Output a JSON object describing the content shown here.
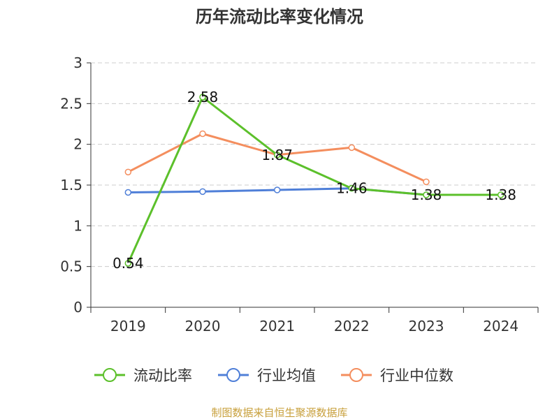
{
  "chart_data": {
    "type": "line",
    "title": "历年流动比率变化情况",
    "categories": [
      "2019",
      "2020",
      "2021",
      "2022",
      "2023",
      "2024"
    ],
    "y_ticks": [
      "0",
      "0.5",
      "1",
      "1.5",
      "2",
      "2.5",
      "3"
    ],
    "ylim": [
      0,
      3
    ],
    "grid": true,
    "legend_position": "bottom",
    "series": [
      {
        "name": "流动比率",
        "color": "#5cc02b",
        "values": [
          0.54,
          2.58,
          1.87,
          1.46,
          1.38,
          1.38
        ],
        "labels": [
          "0.54",
          "2.58",
          "1.87",
          "1.46",
          "1.38",
          "1.38"
        ]
      },
      {
        "name": "行业均值",
        "color": "#4f7fd8",
        "values": [
          1.41,
          1.42,
          1.44,
          1.46,
          1.38,
          null
        ]
      },
      {
        "name": "行业中位数",
        "color": "#f48e5e",
        "values": [
          1.66,
          2.13,
          1.87,
          1.96,
          1.54,
          null
        ]
      }
    ],
    "source": "制图数据来自恒生聚源数据库"
  }
}
